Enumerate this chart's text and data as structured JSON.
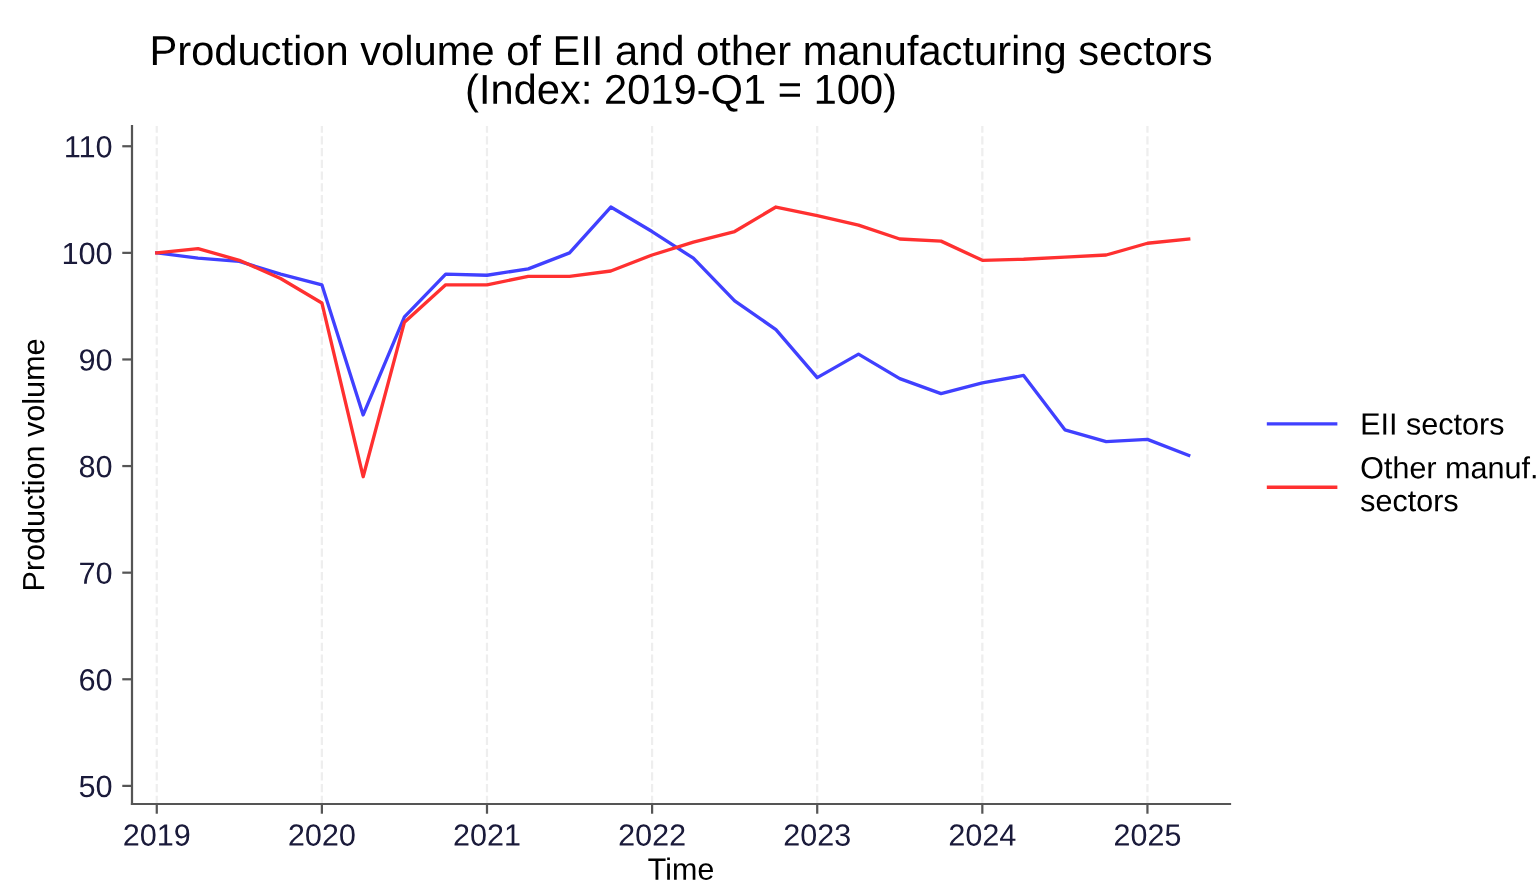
{
  "chart_data": {
    "type": "line",
    "title": "Production volume of EII and other manufacturing sectors\n(Index: 2019-Q1 = 100)",
    "xlabel": "Time",
    "ylabel": "Production volume",
    "x": [
      2019,
      2019.25,
      2019.5,
      2019.75,
      2020,
      2020.25,
      2020.5,
      2020.75,
      2021,
      2021.25,
      2021.5,
      2021.75,
      2022,
      2022.25,
      2022.5,
      2022.75,
      2023,
      2023.25,
      2023.5,
      2023.75,
      2024,
      2024.25,
      2024.5,
      2024.75,
      2025,
      2025.25
    ],
    "series": [
      {
        "name": "EII sectors",
        "color": "#4040ff",
        "values": [
          100,
          99.5,
          99.2,
          98,
          97,
          84.8,
          94,
          98,
          97.9,
          98.5,
          100,
          104.3,
          102,
          99.5,
          95.5,
          92.8,
          88.3,
          90.5,
          88.2,
          86.8,
          87.8,
          88.5,
          83.4,
          82.3,
          82.5,
          81
        ]
      },
      {
        "name": "Other manuf.\nsectors",
        "color": "#ff3030",
        "values": [
          100,
          100.4,
          99.3,
          97.6,
          95.3,
          79,
          93.5,
          97,
          97,
          97.8,
          97.8,
          98.3,
          99.8,
          101,
          102,
          104.3,
          103.5,
          102.6,
          101.3,
          101.1,
          99.3,
          99.4,
          99.6,
          99.8,
          100.9,
          101.3
        ]
      }
    ],
    "xlim": [
      2018.85,
      2025.5
    ],
    "xticks": [
      2019,
      2020,
      2021,
      2022,
      2023,
      2024,
      2025
    ],
    "ylim": [
      48.3,
      111.9
    ],
    "yticks": [
      50,
      60,
      70,
      80,
      90,
      100,
      110
    ],
    "grid": "x",
    "legend": "right",
    "marker": "none",
    "line_style": "solid"
  }
}
